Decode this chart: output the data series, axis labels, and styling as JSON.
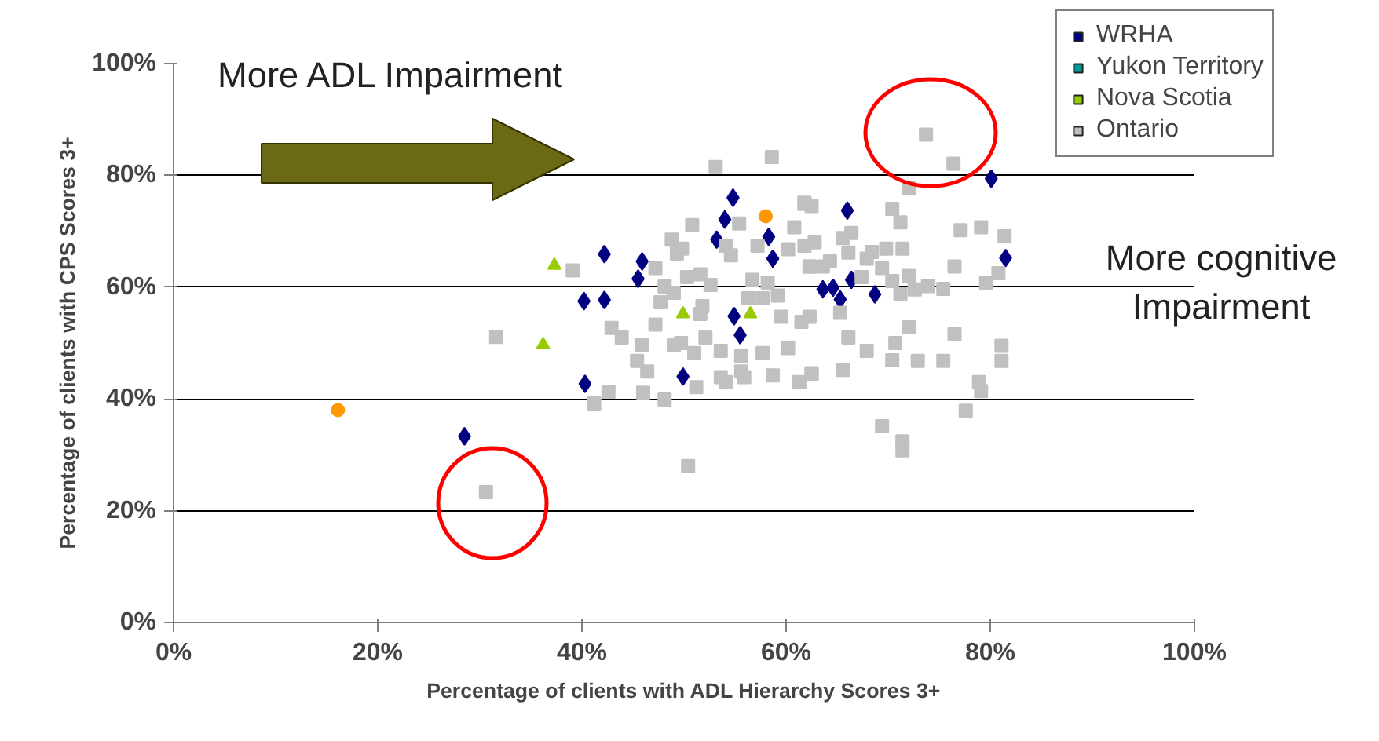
{
  "chart_data": {
    "type": "scatter",
    "xlabel": "Percentage of clients with ADL Hierarchy Scores 3+",
    "ylabel": "Percentage of clients with CPS Scores 3+",
    "annotations": [
      "More ADL Impairment",
      "More cognitive Impairment"
    ],
    "xlim": [
      0,
      100
    ],
    "ylim": [
      0,
      100
    ],
    "xticks": [
      {
        "value": 0,
        "label": "0%"
      },
      {
        "value": 20,
        "label": "20%"
      },
      {
        "value": 40,
        "label": "40%"
      },
      {
        "value": 60,
        "label": "60%"
      },
      {
        "value": 80,
        "label": "80%"
      },
      {
        "value": 100,
        "label": "100%"
      }
    ],
    "yticks": [
      {
        "value": 0,
        "label": "0%"
      },
      {
        "value": 20,
        "label": "20%"
      },
      {
        "value": 40,
        "label": "40%"
      },
      {
        "value": 60,
        "label": "60%"
      },
      {
        "value": 80,
        "label": "80%"
      },
      {
        "value": 100,
        "label": "100%"
      }
    ],
    "grid": "y",
    "legend": "top right",
    "series": [
      {
        "name": "WRHA",
        "color": "#000080",
        "marker": "diamond",
        "x": [
          54.8,
          54.0,
          53.2,
          58.3,
          42.2,
          45.9,
          45.5,
          40.2,
          42.2,
          40.3,
          49.9,
          55.5,
          54.9,
          58.7,
          28.5,
          80.1,
          66.0,
          81.5,
          63.6,
          64.6,
          66.4,
          65.3,
          68.7
        ],
        "values": [
          76.0,
          72.1,
          68.5,
          69.0,
          65.9,
          64.6,
          61.5,
          57.5,
          57.7,
          42.7,
          44.0,
          51.4,
          54.8,
          65.1,
          33.3,
          79.4,
          73.7,
          65.2,
          59.6,
          59.9,
          61.3,
          57.8,
          58.7
        ]
      },
      {
        "name": "Yukon Territory",
        "color": "#009999",
        "marker": "square"
      },
      {
        "name": "Nova Scotia",
        "color": "#99cc00",
        "marker": "triangle",
        "x": [
          37.3,
          36.2,
          49.9,
          56.5
        ],
        "values": [
          63.9,
          49.7,
          55.2,
          55.2
        ]
      },
      {
        "name": "Ontario",
        "color": "#c0c0c0",
        "marker": "square",
        "x": [
          31.6,
          30.6,
          53.1,
          58.6,
          50.8,
          55.4,
          48.8,
          49.3,
          49.8,
          47.2,
          39.1,
          50.3,
          48.1,
          49.0,
          51.6,
          52.6,
          47.7,
          51.8,
          51.6,
          54.6,
          54.1,
          57.2,
          60.2,
          61.8,
          62.5,
          60.8,
          61.8,
          62.8,
          62.3,
          63.6,
          56.7,
          58.2,
          59.2,
          57.7,
          56.3,
          42.9,
          43.9,
          47.2,
          45.9,
          49.0,
          49.7,
          52.1,
          51.0,
          53.6,
          55.6,
          57.7,
          60.2,
          61.5,
          59.5,
          45.4,
          46.4,
          53.6,
          54.1,
          55.6,
          55.9,
          58.7,
          62.5,
          61.3,
          51.2,
          42.6,
          41.2,
          46.0,
          48.1,
          50.4,
          73.7,
          76.4,
          72.0,
          61.8,
          70.4,
          71.2,
          77.1,
          79.1,
          81.4,
          66.4,
          65.6,
          69.8,
          71.4,
          68.4,
          66.1,
          67.9,
          69.4,
          76.5,
          62.3,
          64.3,
          67.4,
          72.0,
          70.4,
          73.9,
          75.4,
          72.6,
          71.2,
          79.6,
          80.8,
          65.3,
          62.3,
          72.0,
          76.5,
          70.7,
          66.1,
          67.9,
          70.4,
          72.9,
          75.4,
          81.1,
          81.1,
          65.6,
          62.5,
          78.9,
          79.1,
          77.6,
          69.4,
          71.4,
          71.4
        ],
        "values": [
          51.1,
          23.3,
          81.5,
          83.3,
          71.1,
          71.4,
          68.5,
          66.0,
          66.9,
          63.4,
          63.0,
          61.8,
          60.1,
          59.0,
          62.3,
          60.4,
          57.3,
          56.6,
          55.2,
          65.7,
          67.4,
          67.4,
          66.8,
          74.9,
          74.5,
          70.7,
          67.4,
          68.0,
          63.7,
          63.7,
          61.3,
          60.8,
          58.5,
          58.0,
          58.0,
          52.7,
          51.0,
          53.3,
          49.6,
          49.6,
          50.0,
          51.0,
          48.2,
          48.6,
          47.7,
          48.2,
          49.1,
          53.8,
          54.7,
          46.8,
          44.9,
          43.9,
          43.0,
          44.9,
          43.9,
          44.2,
          44.6,
          43.0,
          42.1,
          41.3,
          39.2,
          41.1,
          39.9,
          28.0,
          87.3,
          82.1,
          77.7,
          75.1,
          74.0,
          71.6,
          70.2,
          70.7,
          69.1,
          69.7,
          68.8,
          66.9,
          66.9,
          66.3,
          66.2,
          65.1,
          63.4,
          63.7,
          63.7,
          64.6,
          61.8,
          62.0,
          61.1,
          60.2,
          59.7,
          59.6,
          58.8,
          60.8,
          62.5,
          55.4,
          54.7,
          52.8,
          51.6,
          50.0,
          51.0,
          48.6,
          46.9,
          46.8,
          46.8,
          49.5,
          46.8,
          45.2,
          44.4,
          43.0,
          41.4,
          37.9,
          35.1,
          32.4,
          30.8
        ]
      },
      {
        "color": "#ff9900",
        "marker": "circle",
        "x": [
          16.1,
          58.0
        ],
        "values": [
          38.0,
          72.7
        ]
      }
    ]
  }
}
